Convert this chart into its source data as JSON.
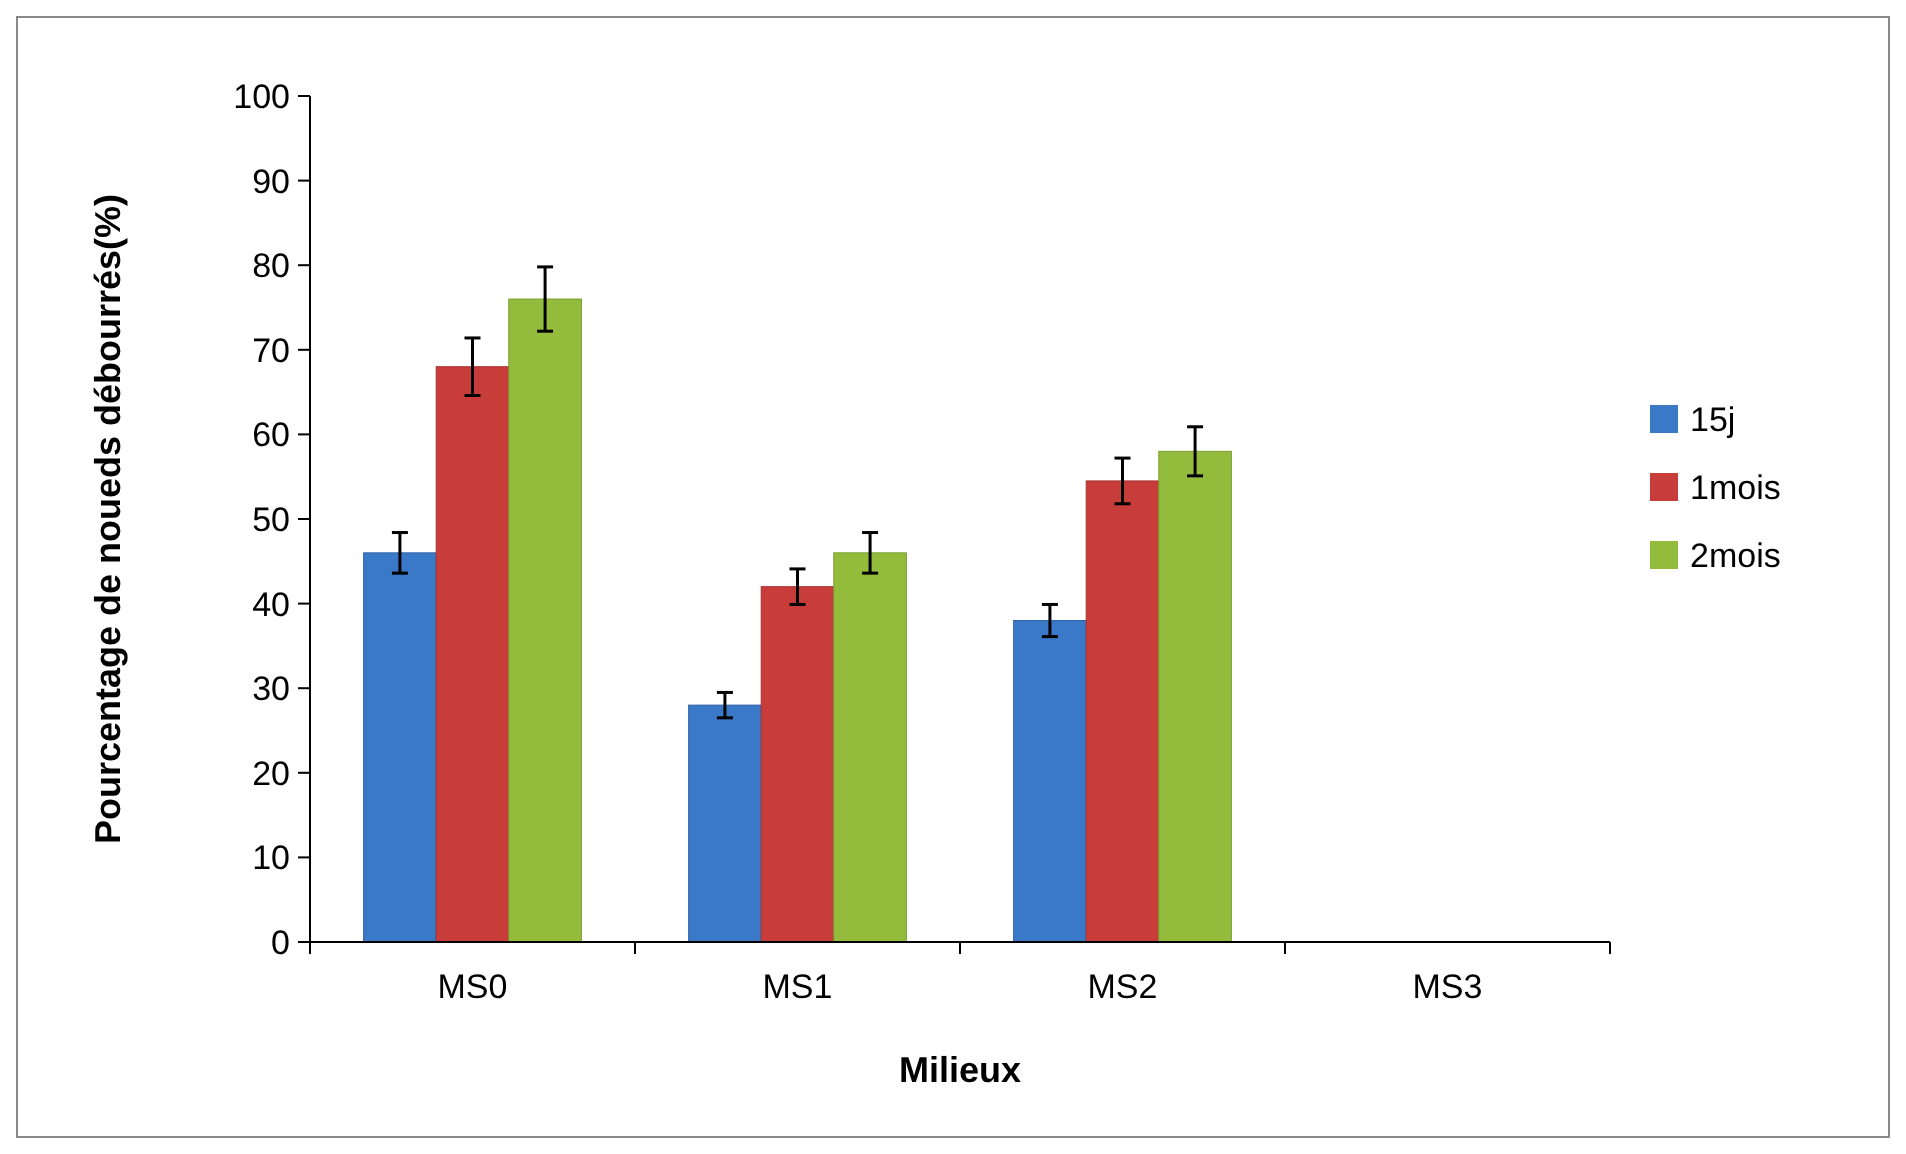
{
  "chart_data": {
    "type": "bar",
    "xlabel": "Milieux",
    "ylabel": "Pourcentage de noueds débourrés(%)",
    "categories": [
      "MS0",
      "MS1",
      "MS2",
      "MS3"
    ],
    "series": [
      {
        "name": "15j",
        "color": "#3a78c8",
        "values": [
          46,
          28,
          38,
          0
        ],
        "errors": [
          2.4,
          1.5,
          1.9,
          null
        ]
      },
      {
        "name": "1mois",
        "color": "#c83c3a",
        "values": [
          68,
          42,
          54.5,
          0
        ],
        "errors": [
          3.4,
          2.1,
          2.7,
          null
        ]
      },
      {
        "name": "2mois",
        "color": "#94bc3c",
        "values": [
          76,
          46,
          58,
          0
        ],
        "errors": [
          3.8,
          2.4,
          2.9,
          null
        ]
      }
    ],
    "ylim": [
      0,
      100
    ],
    "yticks": [
      0,
      10,
      20,
      30,
      40,
      50,
      60,
      70,
      80,
      90,
      100
    ],
    "legend": "right"
  }
}
